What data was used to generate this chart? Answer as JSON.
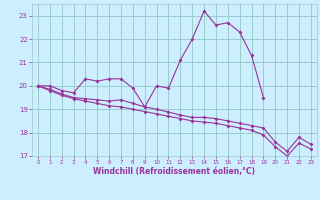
{
  "xlabel": "Windchill (Refroidissement éolien,°C)",
  "xlim": [
    -0.5,
    23.5
  ],
  "ylim": [
    17,
    23.5
  ],
  "yticks": [
    17,
    18,
    19,
    20,
    21,
    22,
    23
  ],
  "xticks": [
    0,
    1,
    2,
    3,
    4,
    5,
    6,
    7,
    8,
    9,
    10,
    11,
    12,
    13,
    14,
    15,
    16,
    17,
    18,
    19,
    20,
    21,
    22,
    23
  ],
  "bg_color": "#cceeff",
  "grid_color": "#99cccc",
  "line_color": "#993399",
  "series1_x": [
    0,
    1,
    2,
    3,
    4,
    5,
    6,
    7,
    8,
    9,
    10,
    11,
    12,
    13,
    14,
    15,
    16,
    17,
    18,
    19
  ],
  "series1_y": [
    20.0,
    20.0,
    19.8,
    19.7,
    20.3,
    20.2,
    20.3,
    20.3,
    19.9,
    19.1,
    20.0,
    19.9,
    21.1,
    22.0,
    23.2,
    22.6,
    22.7,
    22.3,
    21.3,
    19.5
  ],
  "series2_x": [
    0,
    1,
    2,
    3,
    4,
    5,
    6,
    7,
    8,
    9,
    10,
    11,
    12,
    13,
    14,
    15,
    16,
    17,
    18,
    19,
    20,
    21,
    22,
    23
  ],
  "series2_y": [
    20.0,
    19.85,
    19.65,
    19.5,
    19.45,
    19.4,
    19.35,
    19.4,
    19.25,
    19.1,
    19.0,
    18.88,
    18.75,
    18.65,
    18.65,
    18.6,
    18.5,
    18.4,
    18.3,
    18.2,
    17.6,
    17.2,
    17.8,
    17.5
  ],
  "series3_x": [
    0,
    1,
    2,
    3,
    4,
    5,
    6,
    7,
    8,
    9,
    10,
    11,
    12,
    13,
    14,
    15,
    16,
    17,
    18,
    19,
    20,
    21,
    22,
    23
  ],
  "series3_y": [
    20.0,
    19.8,
    19.6,
    19.45,
    19.35,
    19.25,
    19.15,
    19.1,
    19.0,
    18.9,
    18.8,
    18.7,
    18.6,
    18.5,
    18.45,
    18.4,
    18.3,
    18.2,
    18.1,
    17.9,
    17.4,
    17.0,
    17.55,
    17.3
  ]
}
